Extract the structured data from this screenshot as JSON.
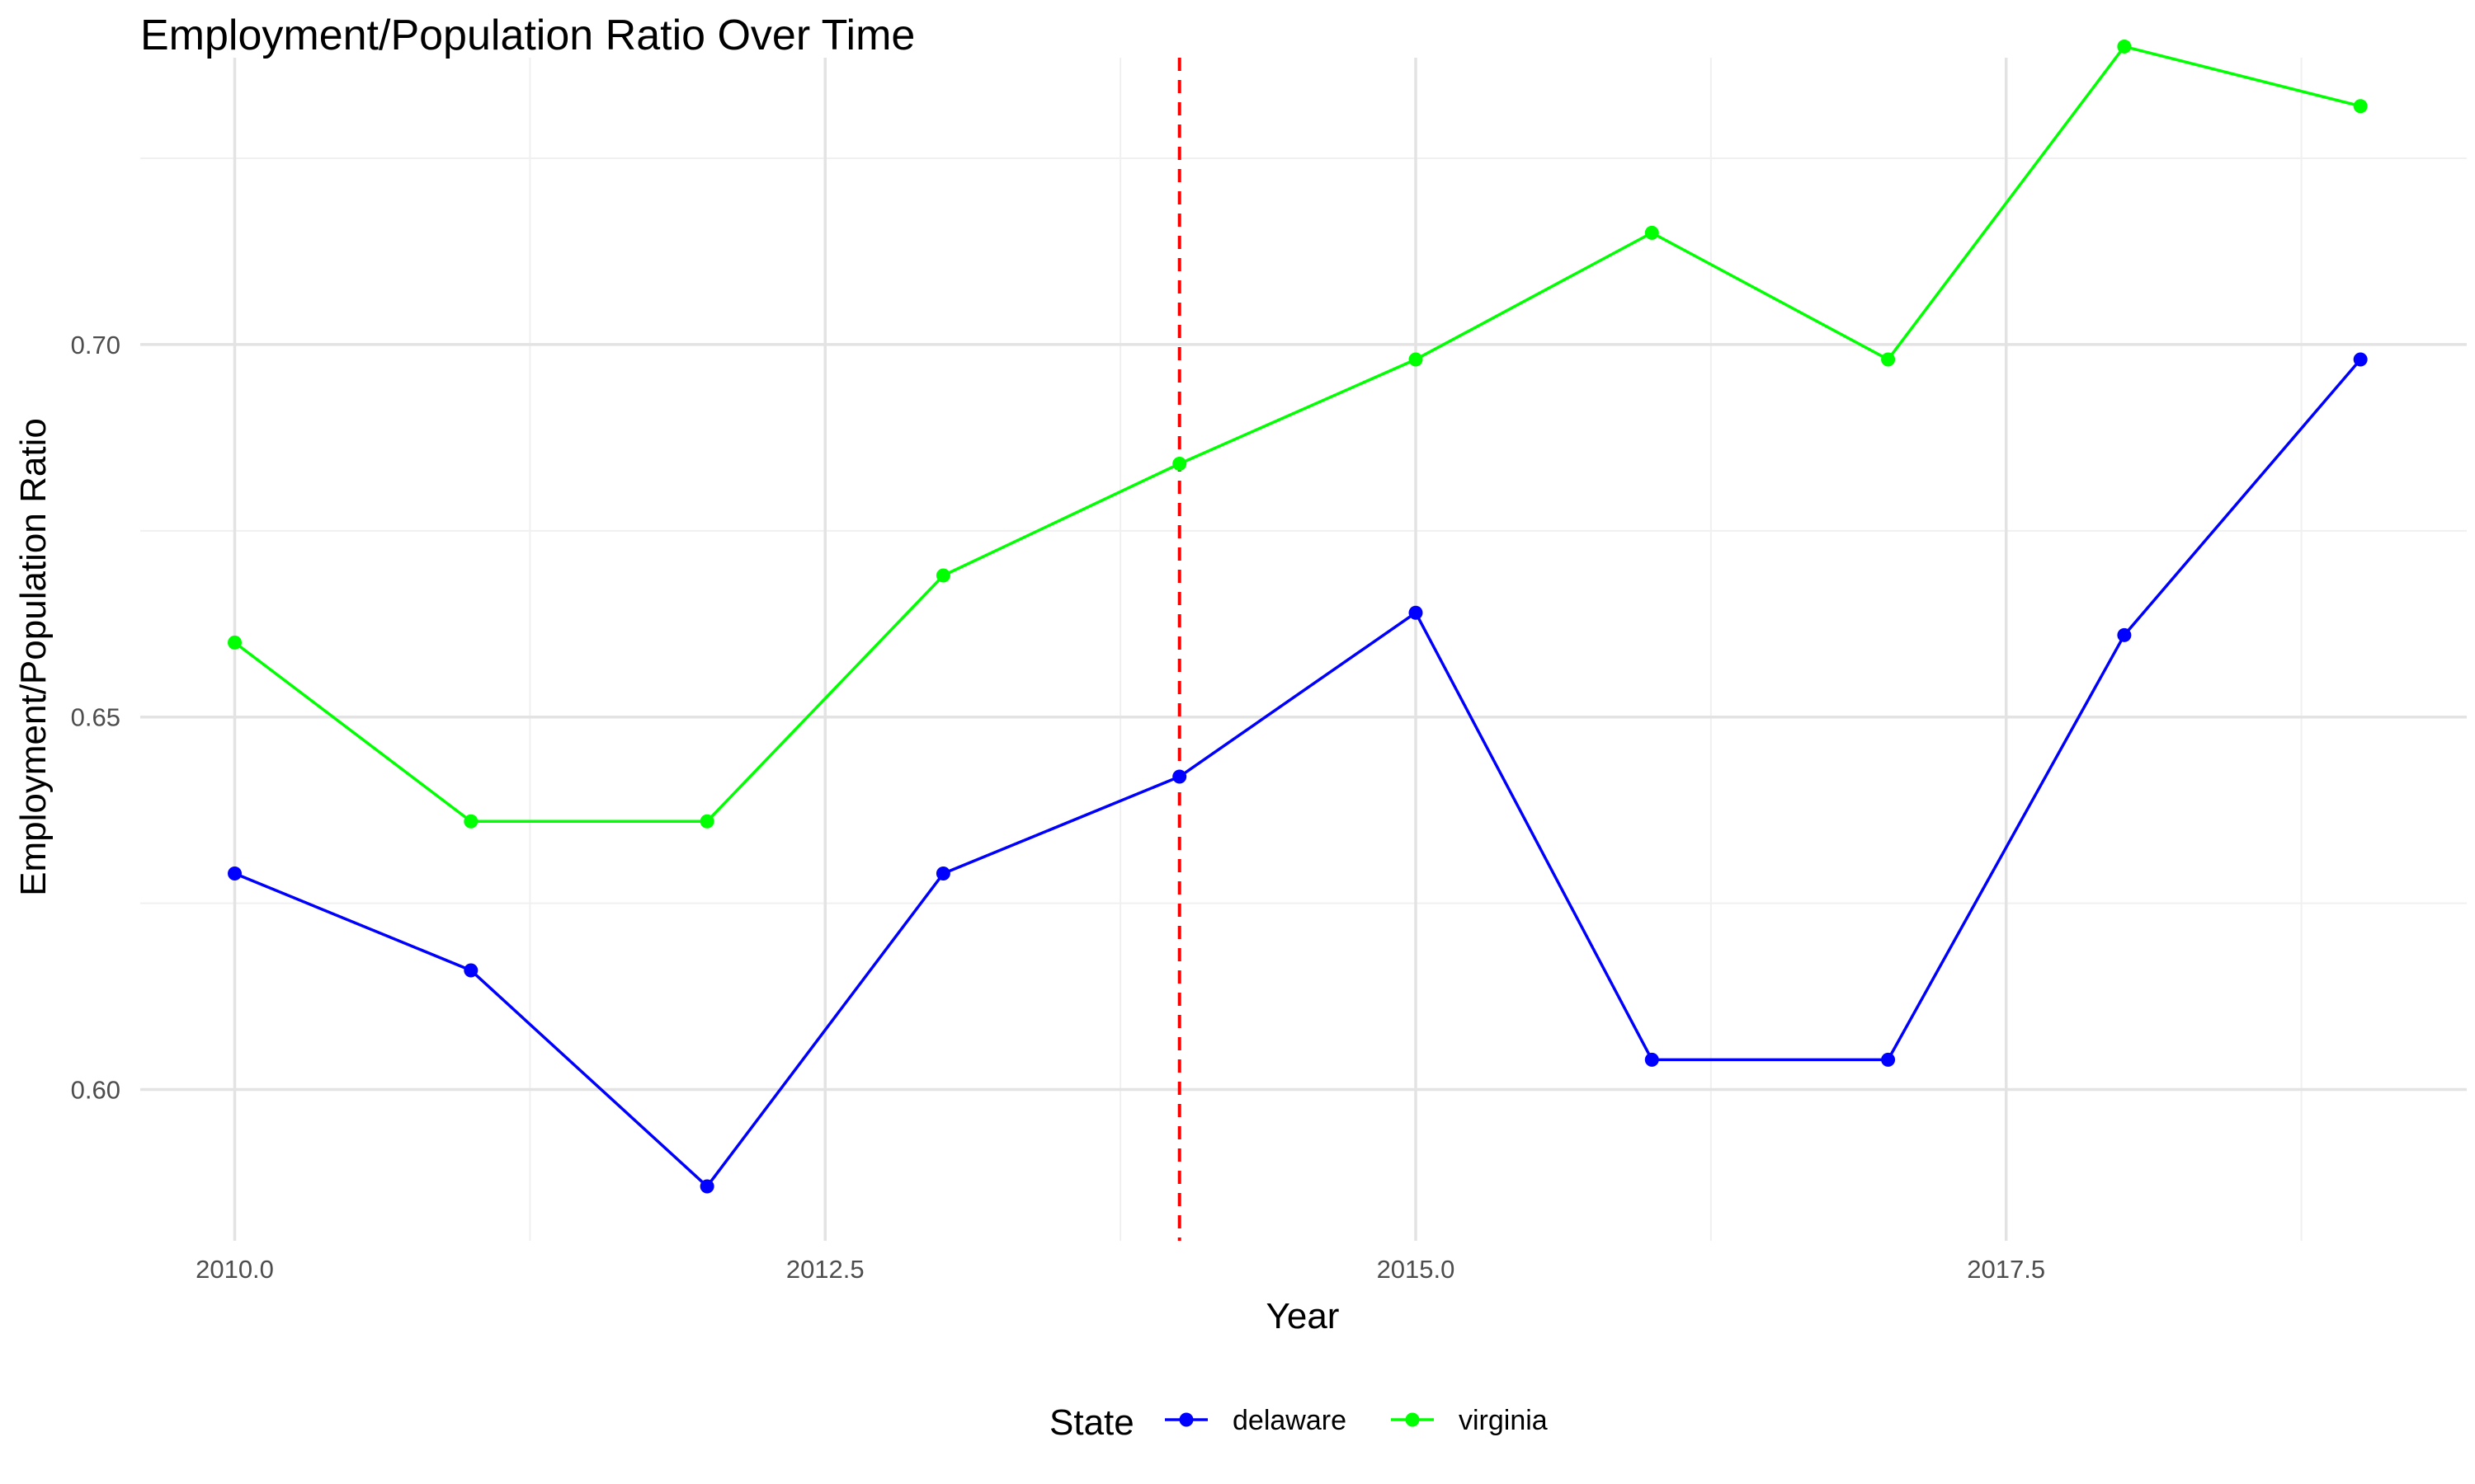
{
  "chart_data": {
    "type": "line",
    "title": "Employment/Population Ratio Over Time",
    "xlabel": "Year",
    "ylabel": "Employment/Population Ratio",
    "x": [
      2010,
      2011,
      2012,
      2013,
      2014,
      2015,
      2016,
      2017,
      2018,
      2019
    ],
    "xlim": [
      2009.6,
      2019.45
    ],
    "ylim": [
      0.5797,
      0.7385
    ],
    "x_ticks": [
      2010.0,
      2012.5,
      2015.0,
      2017.5
    ],
    "x_tick_labels": [
      "2010.0",
      "2012.5",
      "2015.0",
      "2017.5"
    ],
    "y_ticks": [
      0.6,
      0.65,
      0.7
    ],
    "y_tick_labels": [
      "0.60",
      "0.65",
      "0.70"
    ],
    "grid": true,
    "legend": {
      "title": "State",
      "position": "bottom"
    },
    "series": [
      {
        "name": "delaware",
        "color": "#0000FF",
        "values": [
          0.629,
          0.616,
          0.587,
          0.629,
          0.642,
          0.664,
          0.604,
          0.604,
          0.661,
          0.698
        ]
      },
      {
        "name": "virginia",
        "color": "#00FF00",
        "values": [
          0.66,
          0.636,
          0.636,
          0.669,
          0.684,
          0.698,
          0.715,
          0.698,
          0.74,
          0.732
        ]
      }
    ],
    "annotations": [
      {
        "type": "vline",
        "x": 2014,
        "color": "#FF0000",
        "style": "dashed"
      }
    ]
  }
}
